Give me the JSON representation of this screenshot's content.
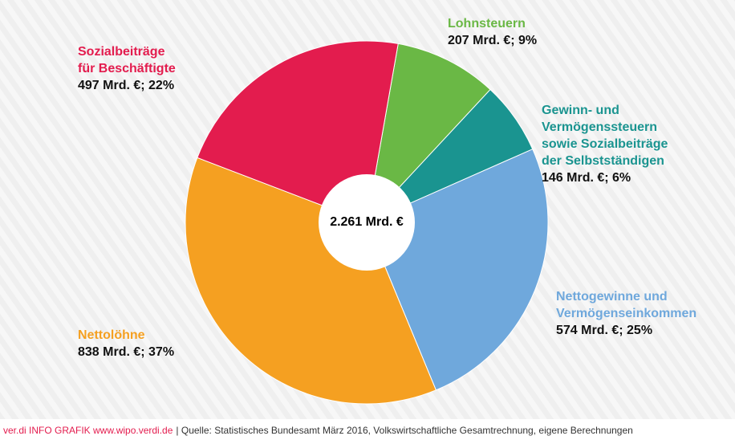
{
  "chart_data": {
    "type": "pie",
    "center_label": "2.261 Mrd. €",
    "categories": [
      [
        "Lohnsteuern"
      ],
      [
        "Gewinn- und",
        "Vermögenssteuern",
        "sowie Sozialbeiträge",
        "der Selbstständigen"
      ],
      [
        "Nettogewinne und",
        "Vermögenseinkommen"
      ],
      [
        "Nettolöhne"
      ],
      [
        "Sozialbeiträge",
        "für Beschäftigte"
      ]
    ],
    "values": [
      207,
      146,
      574,
      838,
      497
    ],
    "value_labels": [
      "207 Mrd. €; 9%",
      "146 Mrd. €; 6%",
      "574 Mrd. €; 25%",
      "838 Mrd. €; 37%",
      "497 Mrd. €; 22%"
    ],
    "colors": [
      "#6ab845",
      "#1a9490",
      "#6fa8dc",
      "#f5a021",
      "#e31c4e"
    ],
    "source_brand": "ver.di INFO GRAFIK www.wipo.verdi.de",
    "source": "| Quelle: Statistisches Bundesamt März 2016, Volkswirtschaftliche Gesamtrechnung, eigene Berechnungen"
  }
}
